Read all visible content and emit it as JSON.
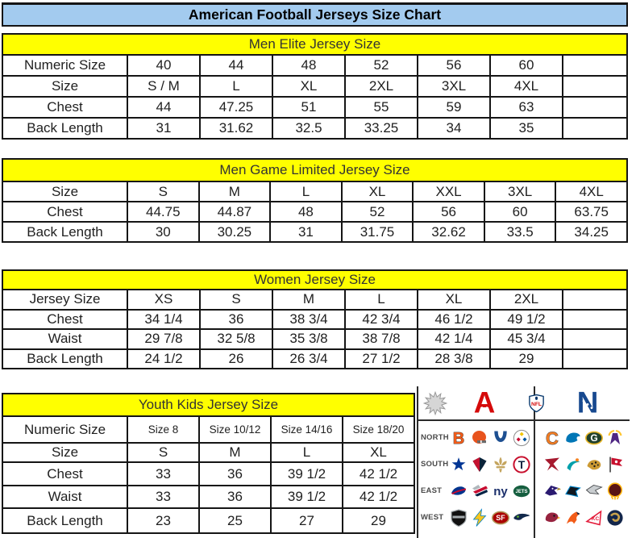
{
  "page": {
    "title": "American Football Jerseys Size Chart"
  },
  "colors": {
    "title_bg": "#a3cbef",
    "band_bg": "#ffff00",
    "border": "#151515",
    "afc_red": "#d50a0a",
    "nfc_blue": "#17498f"
  },
  "tables": [
    {
      "id": "men-elite",
      "header": "Men Elite Jersey Size",
      "rows": [
        {
          "label": "Numeric Size",
          "values": [
            "40",
            "44",
            "48",
            "52",
            "56",
            "60",
            ""
          ]
        },
        {
          "label": "Size",
          "values": [
            "S / M",
            "L",
            "XL",
            "2XL",
            "3XL",
            "4XL",
            ""
          ]
        },
        {
          "label": "Chest",
          "values": [
            "44",
            "47.25",
            "51",
            "55",
            "59",
            "63",
            ""
          ]
        },
        {
          "label": "Back Length",
          "values": [
            "31",
            "31.62",
            "32.5",
            "33.25",
            "34",
            "35",
            ""
          ]
        }
      ]
    },
    {
      "id": "men-game-limited",
      "header": "Men Game Limited Jersey Size",
      "rows": [
        {
          "label": "Size",
          "values": [
            "S",
            "M",
            "L",
            "XL",
            "XXL",
            "3XL",
            "4XL"
          ]
        },
        {
          "label": "Chest",
          "values": [
            "44.75",
            "44.87",
            "48",
            "52",
            "56",
            "60",
            "63.75"
          ]
        },
        {
          "label": "Back Length",
          "values": [
            "30",
            "30.25",
            "31",
            "31.75",
            "32.62",
            "33.5",
            "34.25"
          ]
        }
      ]
    },
    {
      "id": "women",
      "header": "Women Jersey Size",
      "rows": [
        {
          "label": "Jersey Size",
          "values": [
            "XS",
            "S",
            "M",
            "L",
            "XL",
            "2XL",
            ""
          ]
        },
        {
          "label": "Chest",
          "values": [
            "34 1/4",
            "36",
            "38 3/4",
            "42 3/4",
            "46 1/2",
            "49 1/2",
            ""
          ]
        },
        {
          "label": "Waist",
          "values": [
            "29 7/8",
            "32 5/8",
            "35 3/8",
            "38 7/8",
            "42 1/4",
            "45 3/4",
            ""
          ]
        },
        {
          "label": "Back Length",
          "values": [
            "24 1/2",
            "26",
            "26 3/4",
            "27 1/2",
            "28 3/8",
            "29",
            ""
          ]
        }
      ]
    },
    {
      "id": "youth",
      "header": "Youth Kids Jersey Size",
      "rows": [
        {
          "label": "Numeric Size",
          "values": [
            "Size 8",
            "Size 10/12",
            "Size 14/16",
            "Size 18/20"
          ]
        },
        {
          "label": "Size",
          "values": [
            "S",
            "M",
            "L",
            "XL"
          ]
        },
        {
          "label": "Chest",
          "values": [
            "33",
            "36",
            "39 1/2",
            "42 1/2"
          ]
        },
        {
          "label": "Waist",
          "values": [
            "33",
            "36",
            "39 1/2",
            "42 1/2"
          ]
        },
        {
          "label": "Back Length",
          "values": [
            "23",
            "25",
            "27",
            "29"
          ]
        }
      ]
    }
  ],
  "logo_grid": {
    "header_icons": [
      {
        "team": "league-star",
        "label": "league star"
      },
      {
        "team": "afc",
        "label": "AFC"
      },
      {
        "team": "nfl-shield",
        "label": "NFL"
      },
      {
        "team": "nfc",
        "label": "NFC"
      }
    ],
    "rows": [
      {
        "label": "NORTH",
        "afc": [
          "bengals",
          "browns",
          "colts",
          "steelers"
        ],
        "nfc": [
          "bears",
          "lions",
          "packers",
          "vikings"
        ]
      },
      {
        "label": "SOUTH",
        "afc": [
          "cowboys",
          "texans",
          "saints",
          "titans"
        ],
        "nfc": [
          "falcons",
          "dolphins",
          "jaguars",
          "buccaneers"
        ]
      },
      {
        "label": "EAST",
        "afc": [
          "bills",
          "patriots",
          "giants",
          "jets"
        ],
        "nfc": [
          "ravens",
          "panthers",
          "eagles",
          "redskins"
        ]
      },
      {
        "label": "WEST",
        "afc": [
          "raiders",
          "chargers",
          "49ers",
          "seahawks"
        ],
        "nfc": [
          "cardinals",
          "broncos",
          "chiefs",
          "rams"
        ]
      }
    ]
  },
  "team_colors": {
    "league-star": [
      "#d6d6d6",
      "#999999"
    ],
    "afc": [
      "#d50a0a"
    ],
    "nfc": [
      "#17498f"
    ],
    "nfl-shield": [
      "#013369",
      "#d50a0a"
    ],
    "bengals": [
      "#f25c19",
      "#141414"
    ],
    "browns": [
      "#e8531d",
      "#6b6b6b"
    ],
    "colts": [
      "#1d4f91"
    ],
    "steelers": [
      "#f2c400",
      "#c60c30",
      "#00539b"
    ],
    "bears": [
      "#f07d24",
      "#0b162a"
    ],
    "lions": [
      "#0076b6"
    ],
    "packers": [
      "#20402c",
      "#e8b72a"
    ],
    "vikings": [
      "#4f2683",
      "#ffc62f"
    ],
    "cowboys": [
      "#003594"
    ],
    "texans": [
      "#0b2239",
      "#c41230"
    ],
    "saints": [
      "#c4a55f"
    ],
    "titans": [
      "#0c2340",
      "#c8102e"
    ],
    "falcons": [
      "#a6192e"
    ],
    "dolphins": [
      "#00a0ab",
      "#f58220"
    ],
    "jaguars": [
      "#cc9a33",
      "#1a1a1a"
    ],
    "buccaneers": [
      "#c8102e",
      "#4a4a4a"
    ],
    "bills": [
      "#00338d",
      "#c60c30"
    ],
    "patriots": [
      "#b0b7bc",
      "#c60c30",
      "#002244"
    ],
    "giants": [
      "#1b2f6b"
    ],
    "jets": [
      "#155e3f"
    ],
    "raiders": [
      "#111111",
      "#a5acaf"
    ],
    "chargers": [
      "#f7c51e",
      "#0080c6"
    ],
    "49ers": [
      "#aa0000",
      "#b3995d"
    ],
    "seahawks": [
      "#12294b",
      "#69be28"
    ],
    "cardinals": [
      "#97233f",
      "#ffb612"
    ],
    "broncos": [
      "#f25c19",
      "#0a2343"
    ],
    "chiefs": [
      "#e31837"
    ],
    "rams": [
      "#13264b",
      "#c9a24b"
    ],
    "ravens": [
      "#2a1a70",
      "#9e7c0c"
    ],
    "panthers": [
      "#101820",
      "#0085ca"
    ],
    "eagles": [
      "#c9cdd0",
      "#46494c"
    ],
    "redskins": [
      "#5a1414",
      "#ffb612"
    ]
  }
}
